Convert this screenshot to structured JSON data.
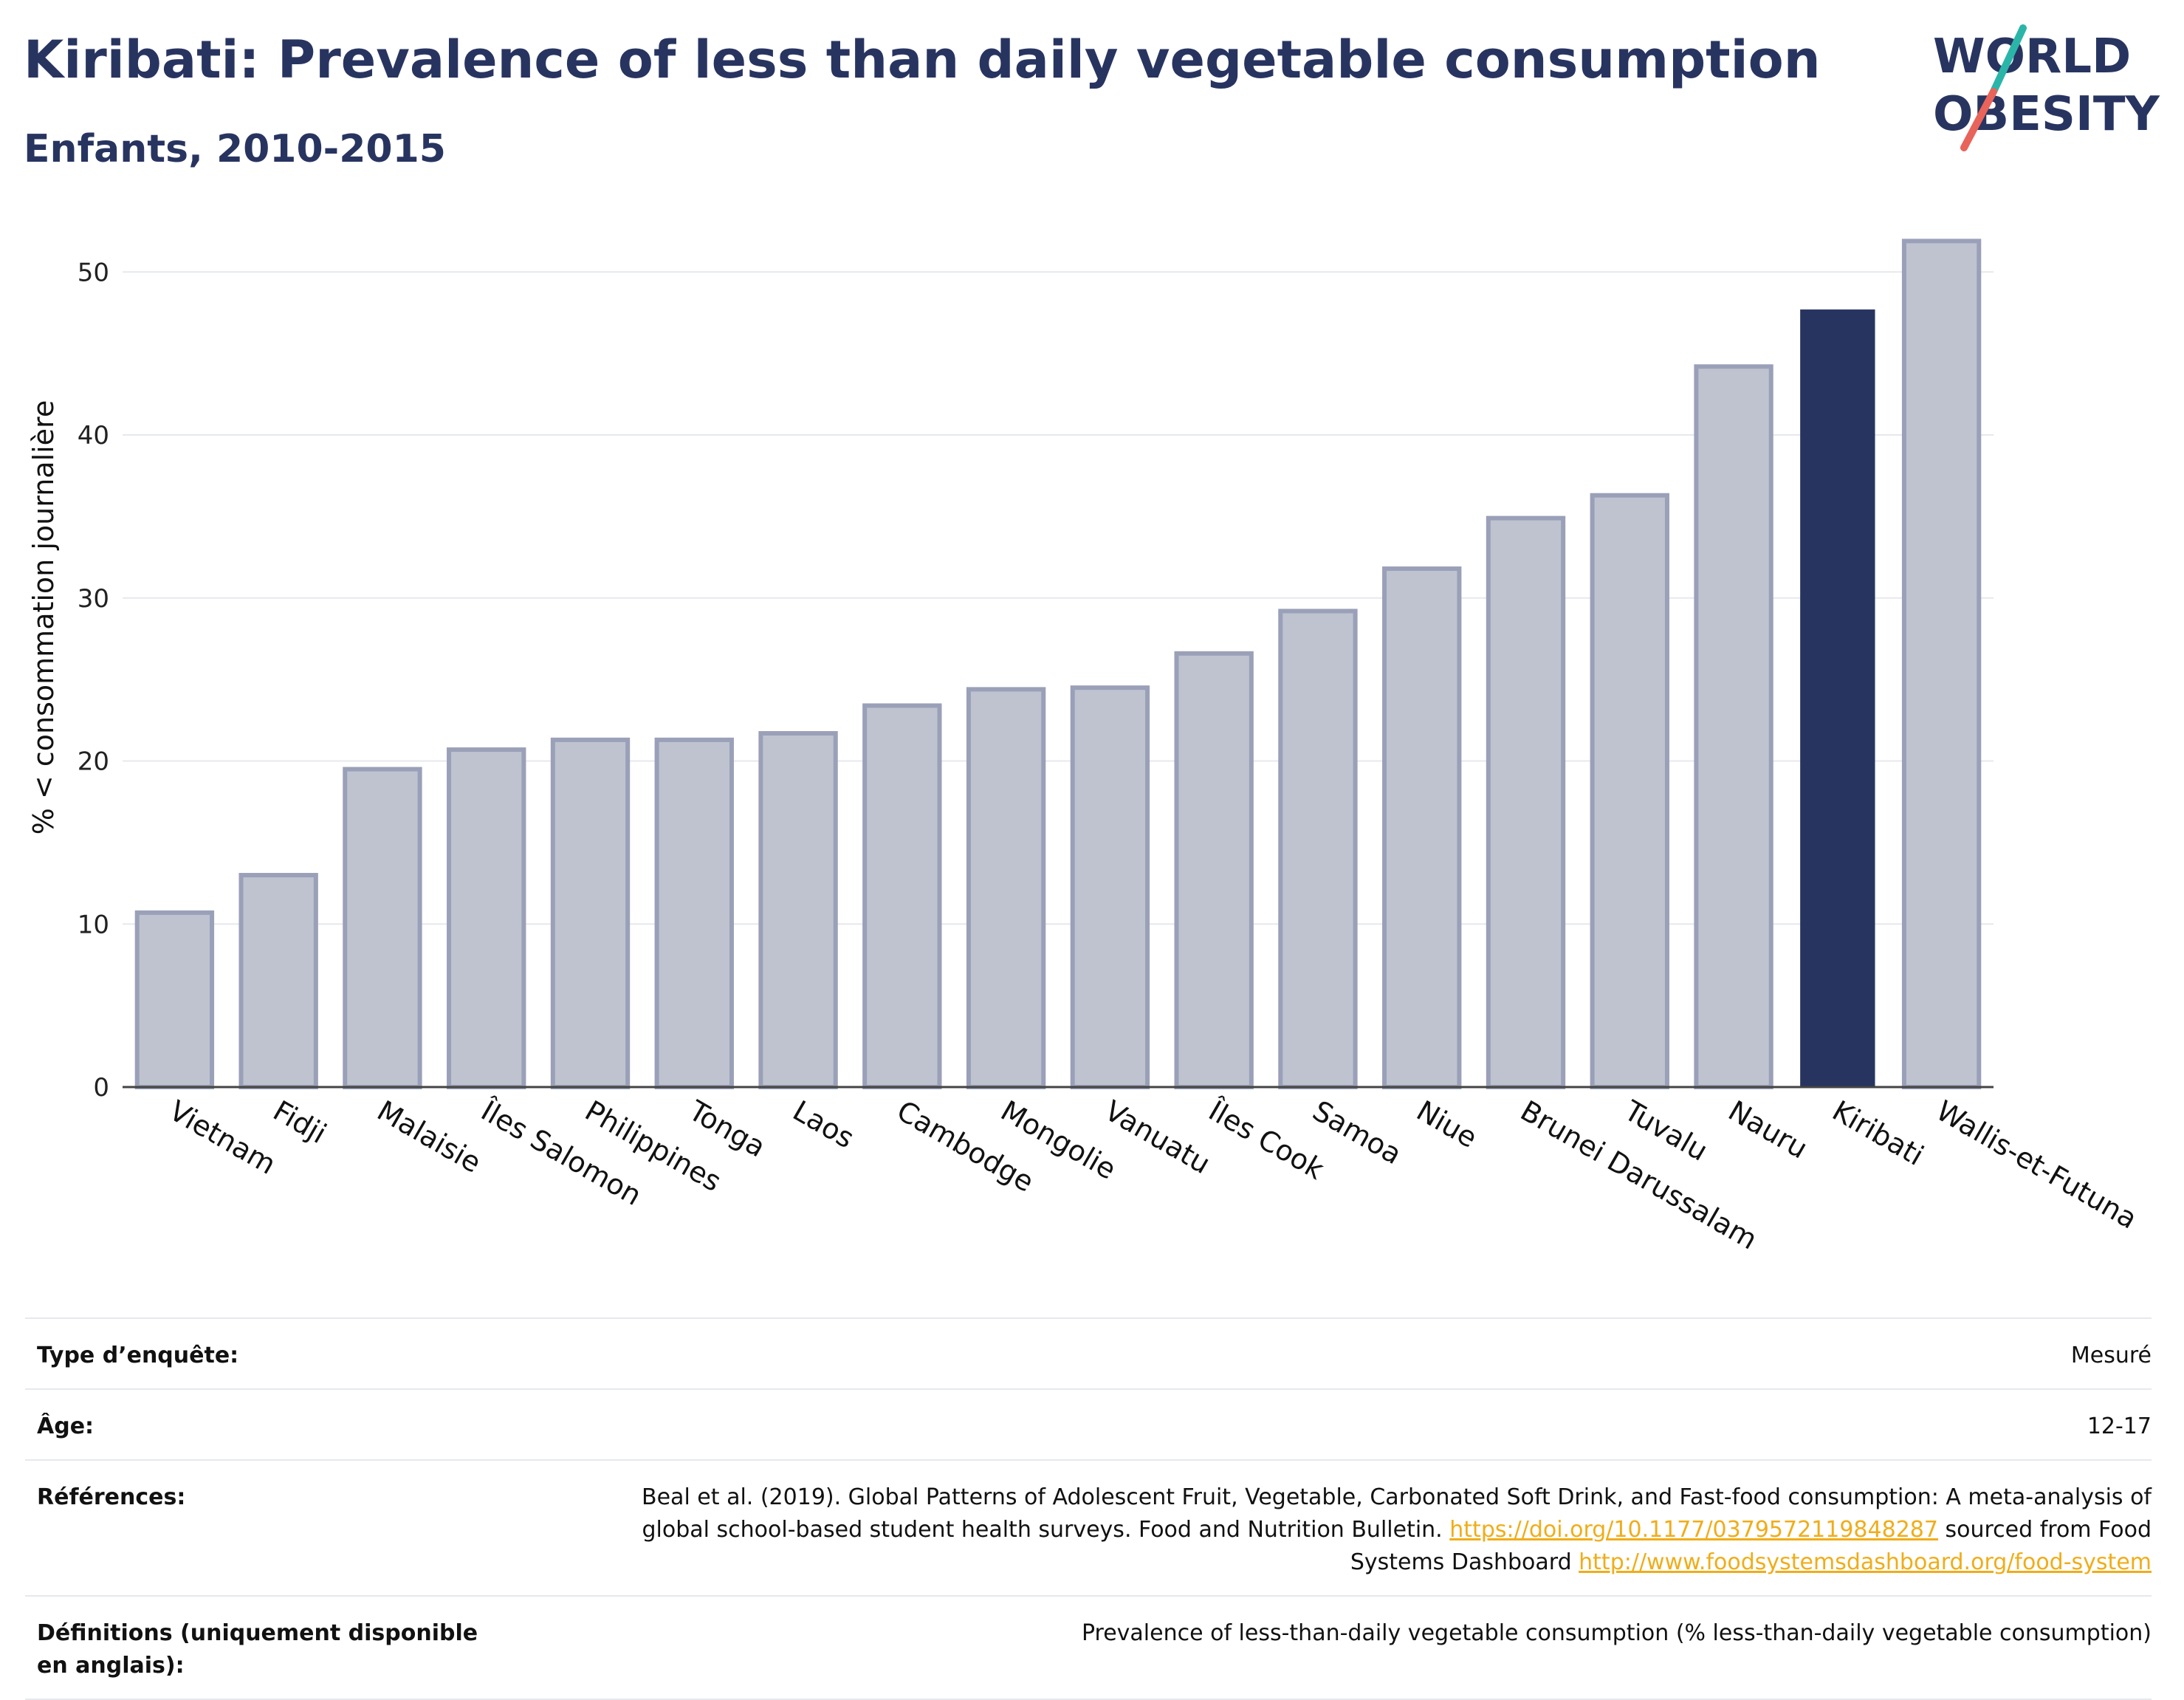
{
  "title": "Kiribati: Prevalence of less than daily vegetable consumption",
  "subtitle": "Enfants, 2010-2015",
  "logo": {
    "line1": "WORLD",
    "line2": "OBESITY"
  },
  "colors": {
    "highlight": "#283460",
    "bar": "#bfc3d0",
    "bar_border": "#9aa0b8",
    "link": "#f0ad19"
  },
  "chart_data": {
    "type": "bar",
    "ylabel": "% < consommation journalière",
    "xlabel": "",
    "ylim": [
      0,
      54
    ],
    "yticks": [
      0,
      10,
      20,
      30,
      40,
      50
    ],
    "grid": true,
    "highlight": "Kiribati",
    "categories": [
      "Vietnam",
      "Fidji",
      "Malaisie",
      "Îles Salomon",
      "Philippines",
      "Tonga",
      "Laos",
      "Cambodge",
      "Mongolie",
      "Vanuatu",
      "Îles Cook",
      "Samoa",
      "Niue",
      "Brunei Darussalam",
      "Tuvalu",
      "Nauru",
      "Kiribati",
      "Wallis-et-Futuna"
    ],
    "values": [
      10.7,
      13.0,
      19.5,
      20.7,
      21.3,
      21.3,
      21.7,
      23.4,
      24.4,
      24.5,
      26.6,
      29.2,
      31.8,
      34.9,
      36.3,
      44.2,
      47.7,
      51.9
    ]
  },
  "info": {
    "survey_type": {
      "label": "Type d’enquête:",
      "value": "Mesuré"
    },
    "age": {
      "label": "Âge:",
      "value": "12-17"
    },
    "references": {
      "label": "Références:",
      "text1": "Beal et al. (2019). Global Patterns of Adolescent Fruit, Vegetable, Carbonated Soft Drink, and Fast-food consumption: A meta-analysis of global school-based student health surveys. Food and Nutrition Bulletin.",
      "link1": "https://doi.org/10.1177/0379572119848287",
      "text2": "sourced from Food Systems Dashboard",
      "link2": "http://www.foodsystemsdashboard.org/food-system"
    },
    "definitions": {
      "label": "Définitions (uniquement disponible en anglais):",
      "value": "Prevalence of less-than-daily vegetable consumption (% less-than-daily vegetable consumption)"
    }
  }
}
